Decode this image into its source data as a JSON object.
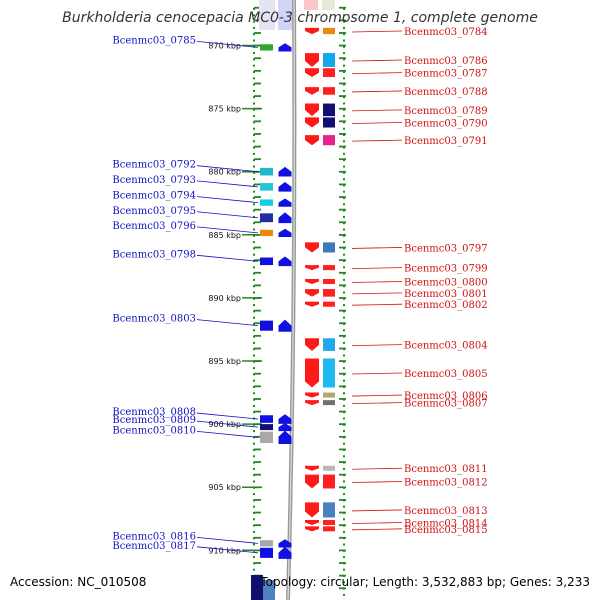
{
  "title": "Burkholderia cenocepacia MC0-3 chromosome 1, complete genome",
  "footer": {
    "accession": "Accession: NC_010508",
    "topology": "Topology: circular; Length: 3,532,883 bp; Genes: 3,233"
  },
  "kbp_ticks": [
    {
      "label": "870 kbp",
      "pos": 870
    },
    {
      "label": "875 kbp",
      "pos": 875
    },
    {
      "label": "880 kbp",
      "pos": 880
    },
    {
      "label": "885 kbp",
      "pos": 885
    },
    {
      "label": "890 kbp",
      "pos": 890
    },
    {
      "label": "895 kbp",
      "pos": 895
    },
    {
      "label": "900 kbp",
      "pos": 900
    },
    {
      "label": "905 kbp",
      "pos": 905
    },
    {
      "label": "910 kbp",
      "pos": 910
    }
  ],
  "left_genes": [
    {
      "label": "Bcenmc03_0785",
      "pos": 869.9,
      "len": 0.5,
      "color": "#2da82d"
    },
    {
      "label": "Bcenmc03_0792",
      "pos": 879.7,
      "len": 0.6,
      "color": "#20b8c8"
    },
    {
      "label": "Bcenmc03_0793",
      "pos": 880.9,
      "len": 0.6,
      "color": "#20c8d8"
    },
    {
      "label": "Bcenmc03_0794",
      "pos": 882.2,
      "len": 0.5,
      "color": "#10d0e0"
    },
    {
      "label": "Bcenmc03_0795",
      "pos": 883.3,
      "len": 0.7,
      "color": "#2030a0"
    },
    {
      "label": "Bcenmc03_0796",
      "pos": 884.6,
      "len": 0.5,
      "color": "#e88a10"
    },
    {
      "label": "Bcenmc03_0798",
      "pos": 886.8,
      "len": 0.6,
      "color": "#1010e0"
    },
    {
      "label": "Bcenmc03_0803",
      "pos": 891.8,
      "len": 0.8,
      "color": "#1010e0"
    },
    {
      "label": "Bcenmc03_0808",
      "pos": 899.3,
      "len": 0.6,
      "color": "#1010e0"
    },
    {
      "label": "Bcenmc03_0809",
      "pos": 900.0,
      "len": 0.4,
      "color": "#101070"
    },
    {
      "label": "Bcenmc03_0810",
      "pos": 900.6,
      "len": 0.9,
      "color": "#a8a8a8"
    },
    {
      "label": "Bcenmc03_0816",
      "pos": 909.2,
      "len": 0.5,
      "color": "#a8a8a8"
    },
    {
      "label": "Bcenmc03_0817",
      "pos": 909.8,
      "len": 0.8,
      "color": "#1010e0"
    }
  ],
  "right_genes": [
    {
      "label": "Bcenmc03_0784",
      "pos": 868.6,
      "len": 0.5,
      "color": "#e88a10"
    },
    {
      "label": "Bcenmc03_0786",
      "pos": 870.6,
      "len": 1.1,
      "color": "#10a8e8"
    },
    {
      "label": "Bcenmc03_0787",
      "pos": 871.8,
      "len": 0.7,
      "color": "#ff2020"
    },
    {
      "label": "Bcenmc03_0788",
      "pos": 873.3,
      "len": 0.6,
      "color": "#ff2020"
    },
    {
      "label": "Bcenmc03_0789",
      "pos": 874.6,
      "len": 1.0,
      "color": "#101070"
    },
    {
      "label": "Bcenmc03_0790",
      "pos": 875.7,
      "len": 0.8,
      "color": "#101070"
    },
    {
      "label": "Bcenmc03_0791",
      "pos": 877.1,
      "len": 0.8,
      "color": "#e8208a"
    },
    {
      "label": "Bcenmc03_0797",
      "pos": 885.6,
      "len": 0.8,
      "color": "#3a7ab8"
    },
    {
      "label": "Bcenmc03_0799",
      "pos": 887.4,
      "len": 0.4,
      "color": "#ff2020"
    },
    {
      "label": "Bcenmc03_0800",
      "pos": 888.5,
      "len": 0.4,
      "color": "#ff2020"
    },
    {
      "label": "Bcenmc03_0801",
      "pos": 889.3,
      "len": 0.6,
      "color": "#ff2020"
    },
    {
      "label": "Bcenmc03_0802",
      "pos": 890.3,
      "len": 0.4,
      "color": "#ff2020"
    },
    {
      "label": "Bcenmc03_0804",
      "pos": 893.2,
      "len": 1.0,
      "color": "#20a8e8"
    },
    {
      "label": "Bcenmc03_0805",
      "pos": 894.8,
      "len": 2.3,
      "color": "#20b8f0"
    },
    {
      "label": "Bcenmc03_0806",
      "pos": 897.5,
      "len": 0.4,
      "color": "#b0a870"
    },
    {
      "label": "Bcenmc03_0807",
      "pos": 898.1,
      "len": 0.3,
      "color": "#707070"
    },
    {
      "label": "Bcenmc03_0811",
      "pos": 903.3,
      "len": 0.3,
      "color": "#b8b8b8"
    },
    {
      "label": "Bcenmc03_0812",
      "pos": 904.0,
      "len": 1.1,
      "color": "#ff2020"
    },
    {
      "label": "Bcenmc03_0813",
      "pos": 906.2,
      "len": 1.2,
      "color": "#4a80c0"
    },
    {
      "label": "Bcenmc03_0814",
      "pos": 907.6,
      "len": 0.3,
      "color": "#ff2020"
    },
    {
      "label": "Bcenmc03_0815",
      "pos": 908.1,
      "len": 0.3,
      "color": "#ff2020"
    }
  ]
}
